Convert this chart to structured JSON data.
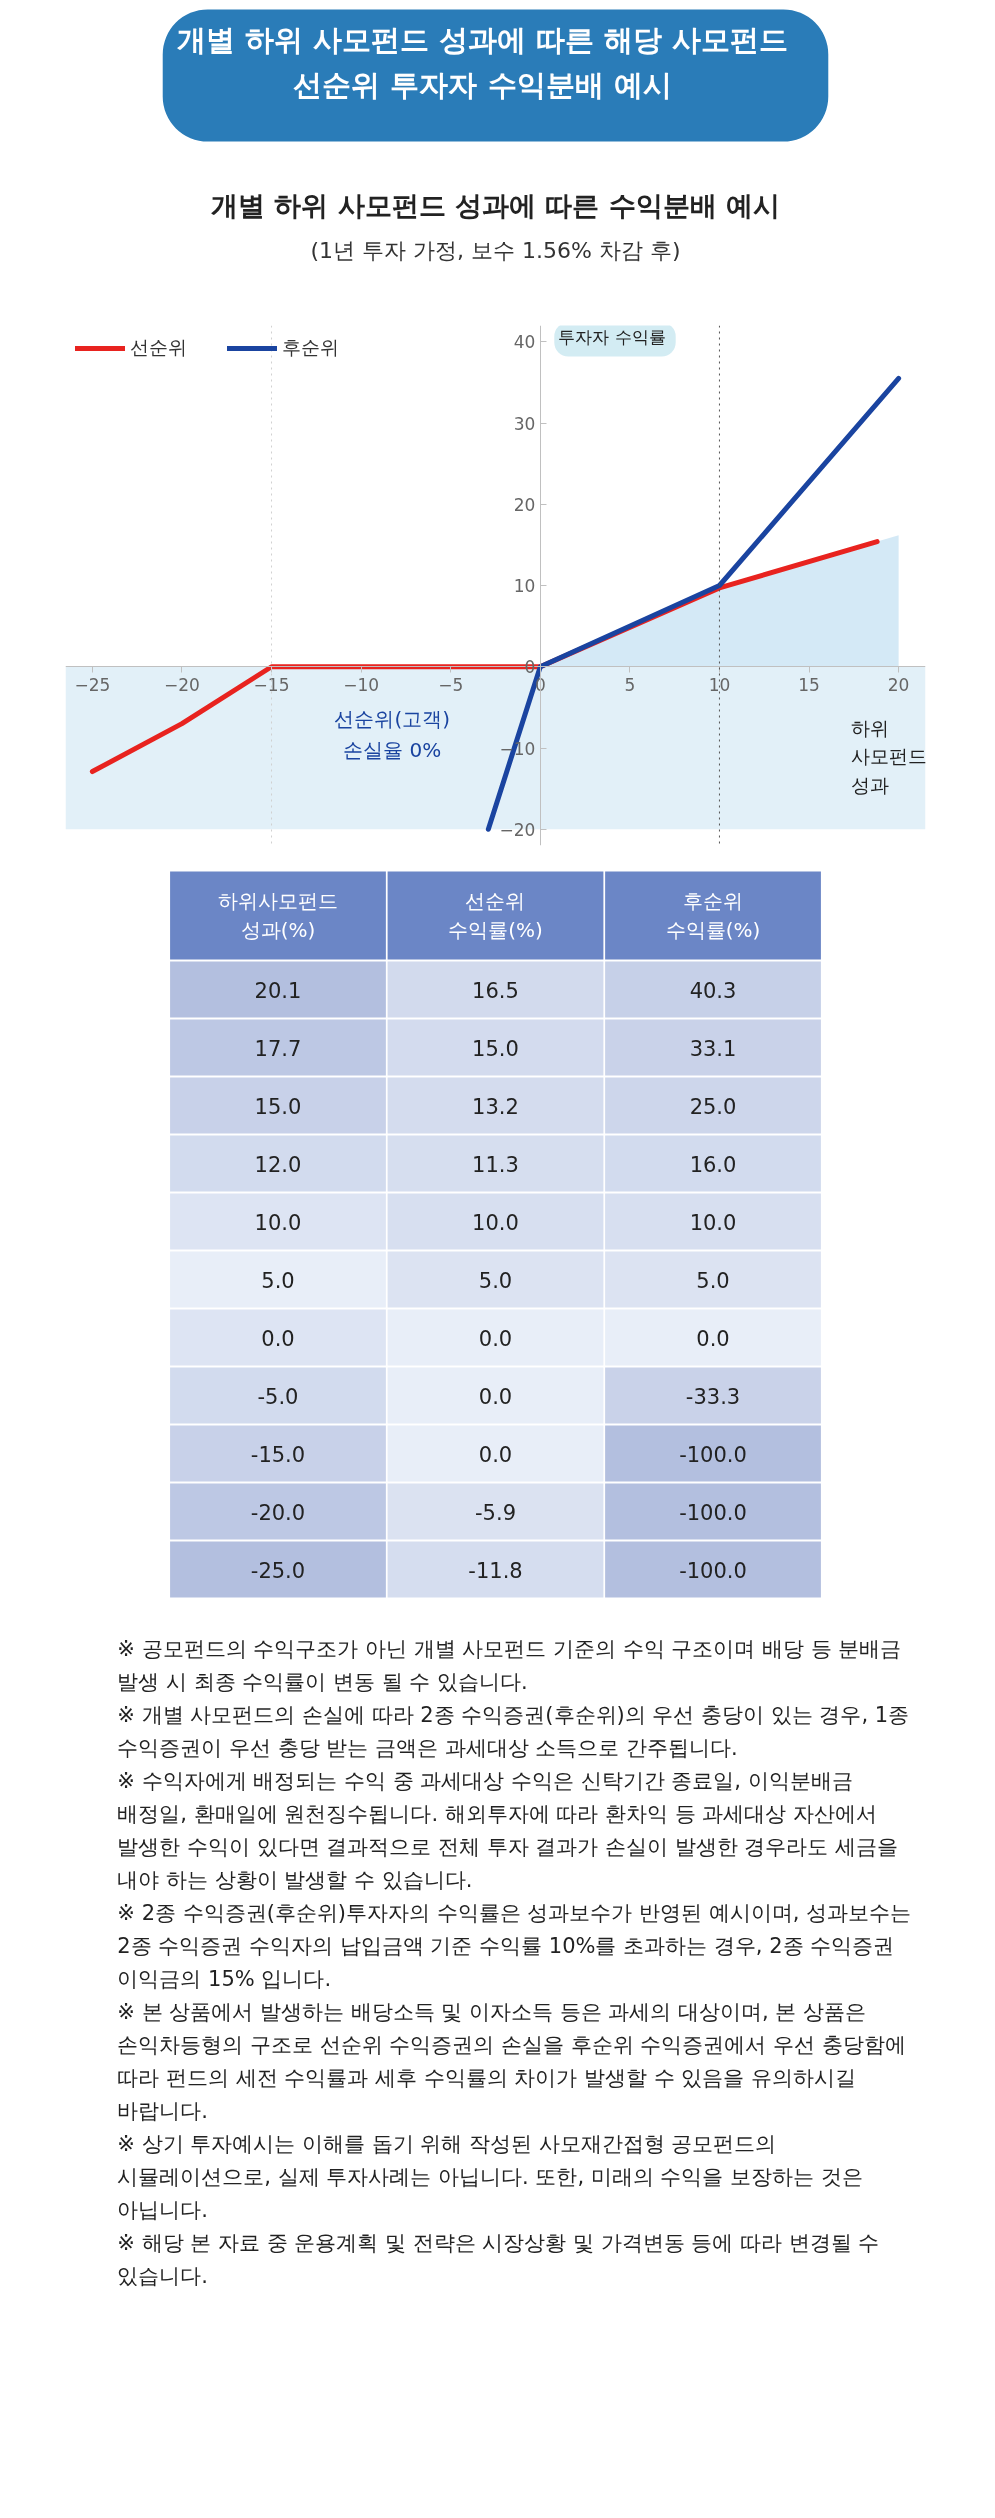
{
  "chart_data": [
    {
      "type": "line",
      "title": "개별 하위 사모펀드 성과에 따른 해당 사모펀드 선순위 투자자 수익분배 예시",
      "subtitle": "개별 하위 사모펀드 성과에 따른 수익분배 예시",
      "annotations": [
        "(1년 투자 가정, 보수 1.56% 차감 후)",
        "선순위(고객) 손실율 0%"
      ],
      "xlabel": "하위 사모펀드 성과",
      "ylabel": "투자자 수익률",
      "series": [
        {
          "type": "area",
          "color": "#c6e2f3",
          "x": [
            0,
            10,
            20
          ],
          "values": [
            0,
            9.7,
            16.2
          ]
        },
        {
          "name": "선순위",
          "color": "#e8231f",
          "x": [
            -25,
            -20,
            -15,
            0,
            10,
            18.8
          ],
          "values": [
            -12.9,
            -7,
            0,
            0,
            9.7,
            15.4
          ]
        },
        {
          "name": "후순위",
          "color": "#1a44a0",
          "x": [
            -2.9,
            0,
            10,
            20
          ],
          "values": [
            -20,
            0,
            10,
            35.5
          ]
        }
      ],
      "xlim": [
        -26.5,
        21.5
      ],
      "ylim": [
        -22,
        42
      ],
      "xticks": [
        -25,
        -20,
        -15,
        -10,
        -5,
        0,
        5,
        10,
        15,
        20
      ],
      "yticks": [
        -20,
        -10,
        0,
        10,
        20,
        30,
        40
      ],
      "ref_lines": [
        {
          "axis": "x",
          "value": -15,
          "color": "#d0d0d0",
          "line_style": "dotted"
        },
        {
          "axis": "x",
          "value": 10,
          "color": "#555555",
          "line_style": "dotted"
        }
      ],
      "bands": [
        {
          "axis": "y",
          "from": -20,
          "to": 0,
          "color": "#e2f0f8"
        }
      ],
      "legend": "top left",
      "line_style": "solid"
    },
    {
      "type": "heatmap",
      "ylabel": "하위사모펀드 성과(%)",
      "categories": [
        "선순위 수익률(%)",
        "후순위 수익률(%)"
      ],
      "y_categories": [
        "20.1",
        "17.7",
        "15.0",
        "12.0",
        "10.0",
        "5.0",
        "0.0",
        "-5.0",
        "-15.0",
        "-20.0",
        "-25.0"
      ],
      "cells": [
        [
          16.5,
          40.3
        ],
        [
          15.0,
          33.1
        ],
        [
          13.2,
          25.0
        ],
        [
          11.3,
          16.0
        ],
        [
          10.0,
          10.0
        ],
        [
          5.0,
          5.0
        ],
        [
          0.0,
          0.0
        ],
        [
          0.0,
          -33.3
        ],
        [
          0.0,
          -100.0
        ],
        [
          -5.9,
          -100.0
        ],
        [
          -11.8,
          -100.0
        ]
      ],
      "cell_labels": [
        [
          "16.5",
          "40.3"
        ],
        [
          "15.0",
          "33.1"
        ],
        [
          "13.2",
          "25.0"
        ],
        [
          "11.3",
          "16.0"
        ],
        [
          "10.0",
          "10.0"
        ],
        [
          "5.0",
          "5.0"
        ],
        [
          "0.0",
          "0.0"
        ],
        [
          "0.0",
          "-33.3"
        ],
        [
          "0.0",
          "-100.0"
        ],
        [
          "-5.9",
          "-100.0"
        ],
        [
          "-11.8",
          "-100.0"
        ]
      ],
      "annotations": [
        "※ 공모펀드의 수익구조가 아닌 개별 사모펀드 기준의 수익 구조이며 배당 등 분배금 발생 시 최종 수익률이 변동 될 수 있습니다.",
        "※ 개별 사모펀드의 손실에 따라 2종 수익증권(후순위)의 우선 충당이 있는 경우, 1종 수익증권이 우선 충당 받는 금액은 과세대상 소득으로 간주됩니다.",
        "※ 수익자에게 배정되는 수익 중 과세대상 수익은 신탁기간 종료일, 이익분배금 배정일, 환매일에 원천징수됩니다. 해외투자에 따라 환차익 등 과세대상 자산에서 발생한 수익이 있다면 결과적으로 전체 투자 결과가 손실이 발생한 경우라도 세금을 내야 하는 상황이 발생할 수 있습니다.",
        "※ 2종 수익증권(후순위)투자자의 수익률은 성과보수가 반영된 예시이며, 성과보수는 2종 수익증권 수익자의 납입금액 기준 수익률 10%를 초과하는 경우, 2종 수익증권 이익금의 15% 입니다.",
        "※ 본 상품에서 발생하는 배당소득 및 이자소득 등은 과세의 대상이며, 본 상품은 손익차등형의 구조로 선순위 수익증권의 손실을 후순위 수익증권에서 우선 충당함에 따라 펀드의 세전 수익률과 세후 수익률의 차이가 발생할 수 있음을 유의하시길 바랍니다.",
        "※ 상기 투자예시는 이해를 돕기 위해 작성된 사모재간접형 공모펀드의 시뮬레이션으로, 실제 투자사례는 아닙니다. 또한, 미래의 수익을 보장하는 것은 아닙니다.",
        "※ 해당 본 자료 중 운용계획 및 전략은 시장상황 및 가격변동 등에 따라 변경될 수 있습니다."
      ]
    }
  ]
}
